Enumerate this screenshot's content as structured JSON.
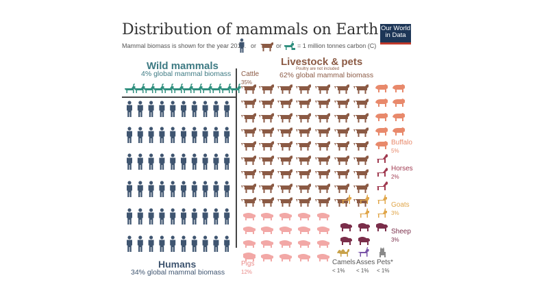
{
  "header": {
    "title": "Distribution of mammals on Earth",
    "subtitle": "Mammal biomass is shown for the year 2015.",
    "or_1": "or",
    "or_2": "or",
    "unit": "= 1 million tonnes carbon (C)",
    "logo_line1": "Our World",
    "logo_line2": "in Data"
  },
  "sections": {
    "wild_title": "Wild mammals",
    "wild_sub": "4% global mammal biomass",
    "livestock_title": "Livestock & pets",
    "livestock_note": "Poultry are not included",
    "livestock_sub": "62% global mammal biomass",
    "humans_title": "Humans",
    "humans_sub": "34% global mammal biomass"
  },
  "labels": {
    "cattle": {
      "name": "Cattle",
      "pct": "35%"
    },
    "buffalo": {
      "name": "Buffalo",
      "pct": "5%"
    },
    "horses": {
      "name": "Horses",
      "pct": "2%"
    },
    "goats": {
      "name": "Goats",
      "pct": "3%"
    },
    "sheep": {
      "name": "Sheep",
      "pct": "3%"
    },
    "pigs": {
      "name": "Pigs",
      "pct": "12%"
    },
    "camels": {
      "name": "Camels",
      "pct": "< 1%"
    },
    "asses": {
      "name": "Asses",
      "pct": "< 1%"
    },
    "pets": {
      "name": "Pets*",
      "pct": "< 1%"
    }
  },
  "colors": {
    "wild": "#2f8f7e",
    "humans": "#3f5570",
    "cattle": "#8b5a44",
    "buffalo": "#e8896b",
    "horses": "#a03a50",
    "goats": "#e0a64a",
    "sheep": "#7a2e4a",
    "pigs": "#f2a8a6",
    "camels": "#c9a24a",
    "asses": "#7a55a8",
    "pets": "#8a8a8a"
  },
  "chart_data": {
    "type": "pictograph",
    "unit": "1 million tonnes carbon (C)",
    "series": [
      {
        "name": "Wild mammals",
        "percent": "4%",
        "icons": 12
      },
      {
        "name": "Humans",
        "percent": "34%",
        "icons": 60
      },
      {
        "name": "Cattle",
        "percent": "35%",
        "icons": 68
      },
      {
        "name": "Pigs",
        "percent": "12%",
        "icons": 24
      },
      {
        "name": "Buffalo",
        "percent": "5%",
        "icons": 10
      },
      {
        "name": "Horses",
        "percent": "2%",
        "icons": 4
      },
      {
        "name": "Goats",
        "percent": "3%",
        "icons": 6
      },
      {
        "name": "Sheep",
        "percent": "3%",
        "icons": 6
      },
      {
        "name": "Camels",
        "percent": "< 1%",
        "icons": 1
      },
      {
        "name": "Asses",
        "percent": "< 1%",
        "icons": 1
      },
      {
        "name": "Pets*",
        "percent": "< 1%",
        "icons": 1
      }
    ]
  }
}
